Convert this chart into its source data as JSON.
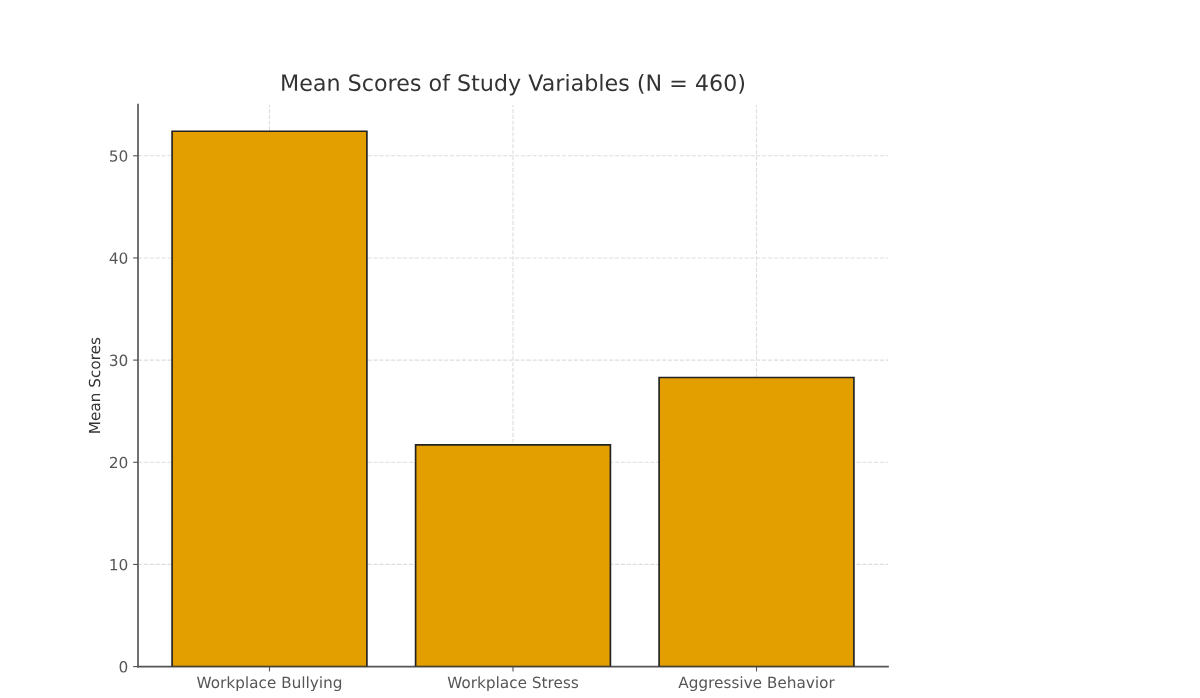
{
  "chart_data": {
    "type": "bar",
    "title": "Mean Scores of Study Variables (N = 460)",
    "ylabel": "Mean Scores",
    "categories": [
      "Workplace Bullying",
      "Workplace Stress",
      "Aggressive Behavior"
    ],
    "values": [
      52.4,
      21.7,
      28.3
    ],
    "color": "#e39f00",
    "ylim": [
      0,
      55
    ],
    "yticks": [
      0,
      10,
      20,
      30,
      40,
      50
    ],
    "grid": true
  }
}
